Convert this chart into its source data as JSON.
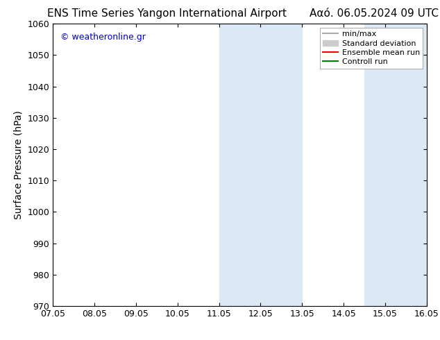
{
  "title_left": "ENS Time Series Yangon International Airport",
  "title_right": "Ααό. 06.05.2024 09 UTC",
  "xlabel_ticks": [
    "07.05",
    "08.05",
    "09.05",
    "10.05",
    "11.05",
    "12.05",
    "13.05",
    "14.05",
    "15.05",
    "16.05"
  ],
  "ylabel": "Surface Pressure (hPa)",
  "ylim": [
    970,
    1060
  ],
  "yticks": [
    970,
    980,
    990,
    1000,
    1010,
    1020,
    1030,
    1040,
    1050,
    1060
  ],
  "xlim": [
    0,
    9
  ],
  "shaded_bands": [
    {
      "x_start": 4.0,
      "x_end": 6.0,
      "color": "#dce9f5"
    },
    {
      "x_start": 7.5,
      "x_end": 9.0,
      "color": "#dce9f5"
    }
  ],
  "legend_entries": [
    {
      "label": "min/max",
      "color": "#aaaaaa",
      "lw": 1.5,
      "linestyle": "-",
      "type": "line"
    },
    {
      "label": "Standard deviation",
      "color": "#cccccc",
      "lw": 8,
      "linestyle": "-",
      "type": "patch"
    },
    {
      "label": "Ensemble mean run",
      "color": "red",
      "lw": 1.5,
      "linestyle": "-",
      "type": "line"
    },
    {
      "label": "Controll run",
      "color": "green",
      "lw": 1.5,
      "linestyle": "-",
      "type": "line"
    }
  ],
  "watermark_text": "© weatheronline.gr",
  "watermark_color": "#0000cc",
  "background_color": "#ffffff",
  "plot_bg_color": "#ffffff",
  "tick_label_fontsize": 9,
  "title_fontsize": 11,
  "ylabel_fontsize": 10,
  "legend_fontsize": 8
}
